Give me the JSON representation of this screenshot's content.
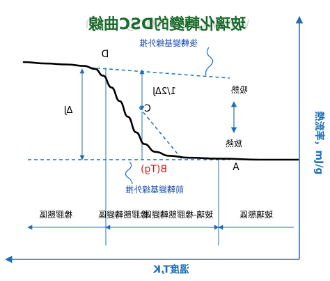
{
  "title": "玻璃化轉變的DSC曲線",
  "colors": {
    "curve": "#000000",
    "guide": "#1f6fb8",
    "callout": "#1f4fb0",
    "tg": "#d11a1a",
    "title": "#1b6b2c",
    "watermark": "#d9d9d9",
    "axis": "#1f6fb8"
  },
  "axes": {
    "x_label": "溫度T,K",
    "y_label": "熱流率，mJ/g"
  },
  "points": {
    "D": "D",
    "C": "C",
    "A": "A",
    "B": "B(Tg)"
  },
  "annotations": {
    "rear_baseline": "後轉變基線外推",
    "front_baseline": "前轉變基線外推",
    "delta_j": "ΔJ",
    "half_delta_j": "1/2ΔJ",
    "endothermic": "吸熱",
    "exothermic": "放熱"
  },
  "regions": [
    "橡膠態區",
    "橡膠態轉變區",
    "玻璃-橡膠態轉變區",
    "玻璃態區"
  ],
  "watermark": "www.greattong.com",
  "chart_data": {
    "type": "line",
    "title": "玻璃化轉變的DSC曲線",
    "xlabel": "溫度T,K",
    "ylabel": "熱流率，mJ/g",
    "series": [
      {
        "values": [
          [
            0.0,
            1.0
          ],
          [
            0.08,
            0.985
          ],
          [
            0.16,
            0.975
          ],
          [
            0.22,
            0.96
          ],
          [
            0.26,
            0.93
          ],
          [
            0.29,
            0.86
          ],
          [
            0.32,
            0.74
          ],
          [
            0.35,
            0.6
          ],
          [
            0.38,
            0.44
          ],
          [
            0.41,
            0.28
          ],
          [
            0.44,
            0.16
          ],
          [
            0.48,
            0.08
          ],
          [
            0.53,
            0.04
          ],
          [
            0.6,
            0.02
          ],
          [
            0.72,
            0.01
          ],
          [
            0.86,
            0.0
          ],
          [
            1.0,
            0.0
          ]
        ]
      }
    ]
  }
}
